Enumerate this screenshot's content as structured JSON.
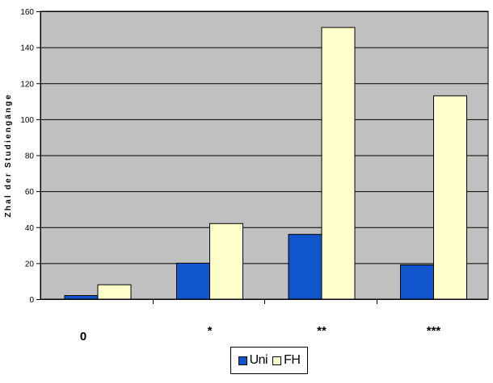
{
  "chart_data": {
    "type": "bar",
    "categories": [
      "0",
      "*",
      "**",
      "***"
    ],
    "series": [
      {
        "name": "Uni",
        "values": [
          2,
          20,
          36,
          19
        ],
        "color": "#1155cc"
      },
      {
        "name": "FH",
        "values": [
          8,
          42,
          151,
          113
        ],
        "color": "#ffffcc"
      }
    ],
    "title": "",
    "xlabel": "",
    "ylabel": "Zhal der Studiengänge",
    "ylim": [
      0,
      160
    ],
    "yticks": [
      0,
      20,
      40,
      60,
      80,
      100,
      120,
      140,
      160
    ],
    "grid": true,
    "legend": "bottom-center",
    "plot_background": "#c0c0c0"
  }
}
